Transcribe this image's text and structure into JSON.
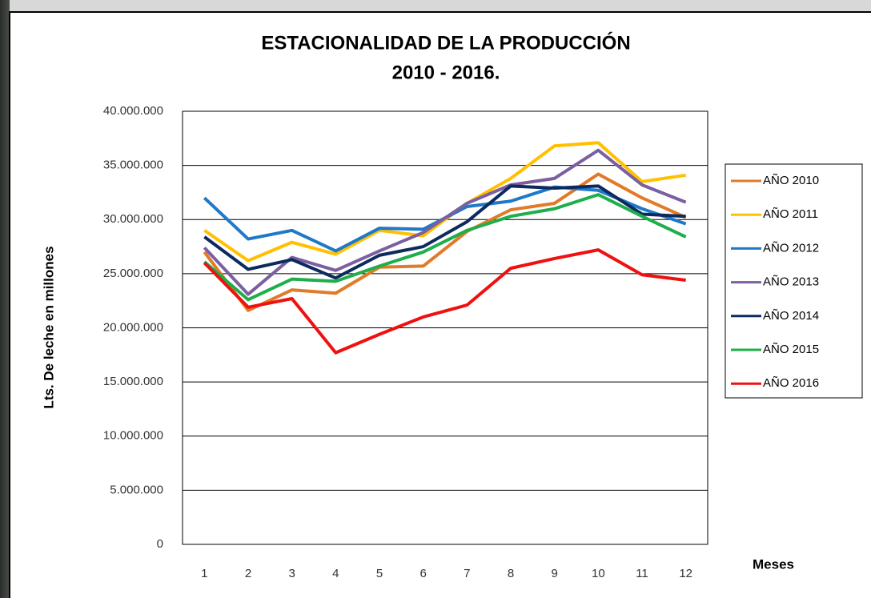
{
  "chart_data": {
    "type": "line",
    "title": "ESTACIONALIDAD DE LA PRODUCCIÓN",
    "subtitle": "2010 - 2016.",
    "y_label": "Lts. De leche en millones",
    "x_label": "Meses",
    "categories": [
      1,
      2,
      3,
      4,
      5,
      6,
      7,
      8,
      9,
      10,
      11,
      12
    ],
    "ylim": [
      0,
      40000000
    ],
    "yticks": [
      0,
      {
        "value": 5000000,
        "label": "5.000.000"
      },
      {
        "value": 10000000,
        "label": "10.000.000"
      },
      {
        "value": 15000000,
        "label": "15.000.000"
      },
      {
        "value": 20000000,
        "label": "20.000.000"
      },
      {
        "value": 25000000,
        "label": "25.000.000"
      },
      {
        "value": 30000000,
        "label": "30.000.000"
      },
      {
        "value": 35000000,
        "label": "35.000.000"
      },
      {
        "value": 40000000,
        "label": "40.000.000"
      }
    ],
    "grid": true,
    "legend": "right",
    "series": [
      {
        "name": "AÑO 2010",
        "color": "#e07b27",
        "values": [
          27000000,
          21600000,
          23500000,
          23200000,
          25600000,
          25700000,
          28900000,
          30900000,
          31500000,
          34200000,
          32000000,
          30200000
        ]
      },
      {
        "name": "AÑO 2011",
        "color": "#ffc000",
        "values": [
          29000000,
          26200000,
          27900000,
          26800000,
          29000000,
          28500000,
          31500000,
          33800000,
          36800000,
          37100000,
          33500000,
          34100000
        ]
      },
      {
        "name": "AÑO 2012",
        "color": "#1f78c8",
        "values": [
          32000000,
          28200000,
          29000000,
          27100000,
          29200000,
          29100000,
          31200000,
          31700000,
          33000000,
          32700000,
          31000000,
          29600000
        ]
      },
      {
        "name": "AÑO 2013",
        "color": "#7b5fa0",
        "values": [
          27400000,
          23100000,
          26500000,
          25300000,
          27100000,
          28800000,
          31500000,
          33200000,
          33800000,
          36400000,
          33200000,
          31600000
        ]
      },
      {
        "name": "AÑO 2014",
        "color": "#0d2a5e",
        "values": [
          28400000,
          25400000,
          26300000,
          24600000,
          26700000,
          27500000,
          29800000,
          33100000,
          32900000,
          33100000,
          30500000,
          30300000
        ]
      },
      {
        "name": "AÑO 2015",
        "color": "#1fae4b",
        "values": [
          26100000,
          22600000,
          24500000,
          24300000,
          25700000,
          27000000,
          29000000,
          30300000,
          31000000,
          32300000,
          30300000,
          28400000
        ]
      },
      {
        "name": "AÑO 2016",
        "color": "#f01010",
        "values": [
          26000000,
          21900000,
          22700000,
          17700000,
          19400000,
          21000000,
          22100000,
          25500000,
          26400000,
          27200000,
          24900000,
          24400000
        ]
      }
    ]
  }
}
